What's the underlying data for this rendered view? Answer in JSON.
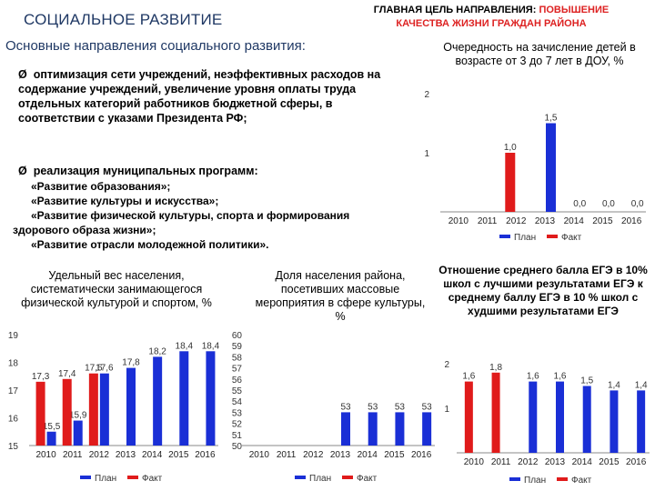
{
  "header": {
    "left_title": "СОЦИАЛЬНОЕ РАЗВИТИЕ",
    "right_line1_a": "ГЛАВНАЯ ЦЕЛЬ НАПРАВЛЕНИЯ: ",
    "right_line1_b": "ПОВЫШЕНИЕ",
    "right_line2": "КАЧЕСТВА ЖИЗНИ ГРАЖДАН РАЙОНА"
  },
  "directions": {
    "title": "Основные направления социального развития:",
    "bullet1": "оптимизация сети учреждений, неэффективных расходов на содержание учреждений, увеличение уровня оплаты труда отдельных категорий работников бюджетной сферы, в соответствии с указами Президента РФ;",
    "bullet2": "реализация муниципальных программ:",
    "programs": [
      "«Развитие образования»;",
      "«Развитие культуры и искусства»;",
      "«Развитие физической культуры, спорта и формирования",
      "здорового образа жизни»;",
      "«Развитие отрасли молодежной политики»."
    ],
    "bullet_marker": "Ø"
  },
  "colors": {
    "plan": "#1a2fd6",
    "fact": "#e01b1b",
    "title": "#1f3864"
  },
  "chart_data": [
    {
      "id": "dou",
      "type": "bar",
      "title": "Очередность на зачисление детей в возрасте от 3 до 7 лет в ДОУ, %",
      "categories": [
        "2010",
        "2011",
        "2012",
        "2013",
        "2014",
        "2015",
        "2016"
      ],
      "ylim": [
        0,
        2
      ],
      "yticks": [
        "1",
        "2"
      ],
      "series": [
        {
          "name": "План",
          "values": [
            null,
            null,
            null,
            1.5,
            0.0,
            0.0,
            0.0
          ],
          "labels": [
            "",
            "",
            "",
            "1,5",
            "0,0",
            "0,0",
            "0,0"
          ]
        },
        {
          "name": "Факт",
          "values": [
            null,
            null,
            1.0,
            null,
            null,
            null,
            null
          ],
          "labels": [
            "",
            "",
            "1,0",
            "",
            "",
            "",
            ""
          ]
        }
      ],
      "legend": [
        "План",
        "Факт"
      ]
    },
    {
      "id": "sport",
      "type": "bar",
      "title": "Удельный вес населения, систематически занимающегося физической культурой и спортом, %",
      "categories": [
        "2010",
        "2011",
        "2012",
        "2013",
        "2014",
        "2015",
        "2016"
      ],
      "ylim": [
        15,
        19
      ],
      "yticks": [
        "15",
        "16",
        "17",
        "18",
        "19"
      ],
      "series": [
        {
          "name": "План",
          "values": [
            15.5,
            15.9,
            17.6,
            17.8,
            18.2,
            18.4,
            18.4
          ],
          "labels": [
            "15,5",
            "15,9",
            "17,6",
            "17,8",
            "18,2",
            "18,4",
            "18,4"
          ]
        },
        {
          "name": "Факт",
          "values": [
            17.3,
            17.4,
            17.6,
            null,
            null,
            null,
            null
          ],
          "labels": [
            "17,3",
            "17,4",
            "17,6",
            "",
            "",
            "",
            ""
          ]
        }
      ],
      "legend": [
        "План",
        "Факт"
      ]
    },
    {
      "id": "culture",
      "type": "bar",
      "title": "Доля населения района, посетивших массовые мероприятия в сфере культуры, %",
      "categories": [
        "2010",
        "2011",
        "2012",
        "2013",
        "2014",
        "2015",
        "2016"
      ],
      "ylim": [
        50,
        60
      ],
      "yticks": [
        "50",
        "51",
        "52",
        "53",
        "54",
        "55",
        "56",
        "57",
        "58",
        "59",
        "60"
      ],
      "series": [
        {
          "name": "План",
          "values": [
            null,
            null,
            null,
            53,
            53,
            53,
            53
          ],
          "labels": [
            "",
            "",
            "",
            "53",
            "53",
            "53",
            "53"
          ]
        },
        {
          "name": "Факт",
          "values": [
            null,
            null,
            null,
            null,
            null,
            null,
            null
          ],
          "labels": [
            "",
            "",
            "",
            "",
            "",
            "",
            ""
          ]
        }
      ],
      "legend": [
        "План",
        "Факт"
      ]
    },
    {
      "id": "ege",
      "type": "bar",
      "title": "Отношение среднего балла ЕГЭ в 10% школ с лучшими результатами ЕГЭ к среднему баллу ЕГЭ в 10 % школ с худшими результатами ЕГЭ",
      "categories": [
        "2010",
        "2011",
        "2012",
        "2013",
        "2014",
        "2015",
        "2016"
      ],
      "ylim": [
        0,
        2
      ],
      "yticks": [
        "1",
        "2"
      ],
      "series": [
        {
          "name": "План",
          "values": [
            null,
            null,
            1.6,
            1.6,
            1.5,
            1.4,
            1.4
          ],
          "labels": [
            "",
            "",
            "1,6",
            "1,6",
            "1,5",
            "1,4",
            "1,4"
          ]
        },
        {
          "name": "Факт",
          "values": [
            1.6,
            1.8,
            null,
            null,
            null,
            null,
            null
          ],
          "labels": [
            "1,6",
            "1,8",
            "",
            "",
            "",
            "",
            ""
          ]
        }
      ],
      "legend": [
        "План",
        "Факт"
      ]
    }
  ]
}
